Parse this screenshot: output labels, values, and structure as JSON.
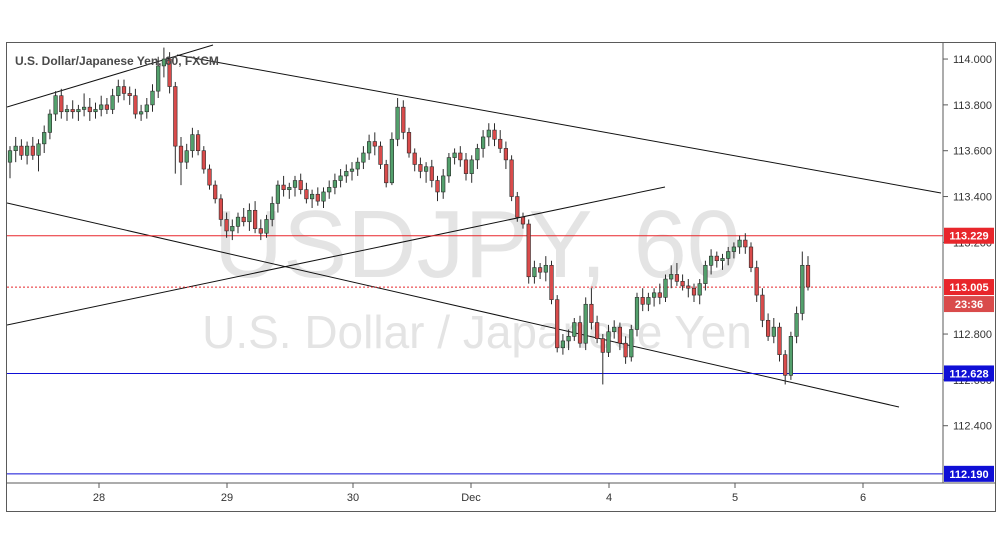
{
  "chart_data": {
    "type": "candlestick",
    "title": "U.S. Dollar/Japanese Yen, 60, FXCM",
    "watermark_symbol": "USDJPY, 60",
    "watermark_name": "U.S. Dollar / Japanese Yen",
    "x_tick_labels": [
      "28",
      "29",
      "30",
      "Dec",
      "4",
      "5",
      "6"
    ],
    "y_tick_labels": [
      "114.000",
      "113.800",
      "113.600",
      "113.400",
      "113.200",
      "112.800",
      "112.600",
      "112.400"
    ],
    "ylim": [
      112.15,
      114.07
    ],
    "price_lines": [
      {
        "label": "113.229",
        "value": 113.229,
        "color": "#e8262b",
        "style": "solid"
      },
      {
        "label": "113.005",
        "value": 113.005,
        "color": "#e8262b",
        "style": "dotted"
      },
      {
        "label": "112.628",
        "value": 112.628,
        "color": "#0f0fd6",
        "style": "solid"
      },
      {
        "label": "112.190",
        "value": 112.19,
        "color": "#0f0fd6",
        "style": "solid"
      }
    ],
    "countdown_label": "23:36",
    "colors": {
      "up": "#53a06c",
      "down": "#d94b4b",
      "outline": "#2b2b2b",
      "watermark": "#e4e4e4"
    },
    "candles": [
      [
        113.55,
        113.62,
        113.48,
        113.6
      ],
      [
        113.6,
        113.66,
        113.55,
        113.62
      ],
      [
        113.62,
        113.65,
        113.56,
        113.58
      ],
      [
        113.58,
        113.64,
        113.54,
        113.62
      ],
      [
        113.62,
        113.66,
        113.56,
        113.58
      ],
      [
        113.58,
        113.65,
        113.51,
        113.63
      ],
      [
        113.63,
        113.71,
        113.59,
        113.68
      ],
      [
        113.68,
        113.78,
        113.65,
        113.76
      ],
      [
        113.76,
        113.86,
        113.73,
        113.84
      ],
      [
        113.84,
        113.87,
        113.74,
        113.77
      ],
      [
        113.77,
        113.8,
        113.73,
        113.78
      ],
      [
        113.78,
        113.82,
        113.74,
        113.77
      ],
      [
        113.77,
        113.8,
        113.73,
        113.78
      ],
      [
        113.78,
        113.85,
        113.75,
        113.79
      ],
      [
        113.79,
        113.83,
        113.73,
        113.77
      ],
      [
        113.77,
        113.81,
        113.74,
        113.78
      ],
      [
        113.78,
        113.84,
        113.75,
        113.8
      ],
      [
        113.8,
        113.83,
        113.76,
        113.78
      ],
      [
        113.78,
        113.87,
        113.76,
        113.84
      ],
      [
        113.84,
        113.91,
        113.81,
        113.88
      ],
      [
        113.88,
        113.91,
        113.82,
        113.85
      ],
      [
        113.85,
        113.88,
        113.8,
        113.84
      ],
      [
        113.84,
        113.87,
        113.74,
        113.76
      ],
      [
        113.76,
        113.8,
        113.73,
        113.77
      ],
      [
        113.77,
        113.83,
        113.74,
        113.8
      ],
      [
        113.8,
        113.89,
        113.77,
        113.86
      ],
      [
        113.86,
        114.01,
        113.83,
        113.97
      ],
      [
        113.97,
        114.05,
        113.92,
        114.0
      ],
      [
        114.0,
        114.03,
        113.85,
        113.88
      ],
      [
        113.88,
        113.9,
        113.5,
        113.62
      ],
      [
        113.62,
        113.66,
        113.45,
        113.55
      ],
      [
        113.55,
        113.63,
        113.52,
        113.6
      ],
      [
        113.6,
        113.7,
        113.57,
        113.67
      ],
      [
        113.67,
        113.69,
        113.58,
        113.6
      ],
      [
        113.6,
        113.62,
        113.5,
        113.52
      ],
      [
        113.52,
        113.54,
        113.43,
        113.45
      ],
      [
        113.45,
        113.47,
        113.37,
        113.39
      ],
      [
        113.39,
        113.41,
        113.27,
        113.3
      ],
      [
        113.3,
        113.33,
        113.22,
        113.25
      ],
      [
        113.25,
        113.3,
        113.21,
        113.27
      ],
      [
        113.27,
        113.33,
        113.24,
        113.31
      ],
      [
        113.31,
        113.35,
        113.27,
        113.29
      ],
      [
        113.29,
        113.37,
        113.25,
        113.34
      ],
      [
        113.34,
        113.38,
        113.24,
        113.26
      ],
      [
        113.26,
        113.3,
        113.21,
        113.24
      ],
      [
        113.24,
        113.32,
        113.22,
        113.3
      ],
      [
        113.3,
        113.4,
        113.27,
        113.37
      ],
      [
        113.37,
        113.47,
        113.33,
        113.45
      ],
      [
        113.45,
        113.49,
        113.4,
        113.43
      ],
      [
        113.43,
        113.46,
        113.39,
        113.44
      ],
      [
        113.44,
        113.49,
        113.4,
        113.47
      ],
      [
        113.47,
        113.5,
        113.41,
        113.43
      ],
      [
        113.43,
        113.46,
        113.37,
        113.39
      ],
      [
        113.39,
        113.43,
        113.35,
        113.41
      ],
      [
        113.41,
        113.44,
        113.36,
        113.38
      ],
      [
        113.38,
        113.44,
        113.35,
        113.42
      ],
      [
        113.42,
        113.47,
        113.39,
        113.44
      ],
      [
        113.44,
        113.5,
        113.41,
        113.47
      ],
      [
        113.47,
        113.52,
        113.44,
        113.49
      ],
      [
        113.49,
        113.54,
        113.46,
        113.51
      ],
      [
        113.51,
        113.55,
        113.47,
        113.52
      ],
      [
        113.52,
        113.57,
        113.49,
        113.55
      ],
      [
        113.55,
        113.62,
        113.52,
        113.59
      ],
      [
        113.59,
        113.67,
        113.56,
        113.64
      ],
      [
        113.64,
        113.68,
        113.58,
        113.62
      ],
      [
        113.62,
        113.64,
        113.52,
        113.54
      ],
      [
        113.54,
        113.56,
        113.44,
        113.46
      ],
      [
        113.46,
        113.68,
        113.45,
        113.65
      ],
      [
        113.65,
        113.83,
        113.62,
        113.79
      ],
      [
        113.79,
        113.82,
        113.65,
        113.68
      ],
      [
        113.68,
        113.7,
        113.57,
        113.59
      ],
      [
        113.59,
        113.61,
        113.51,
        113.54
      ],
      [
        113.54,
        113.57,
        113.48,
        113.51
      ],
      [
        113.51,
        113.55,
        113.46,
        113.53
      ],
      [
        113.53,
        113.56,
        113.44,
        113.47
      ],
      [
        113.47,
        113.49,
        113.38,
        113.42
      ],
      [
        113.42,
        113.52,
        113.39,
        113.49
      ],
      [
        113.49,
        113.59,
        113.46,
        113.57
      ],
      [
        113.57,
        113.61,
        113.54,
        113.59
      ],
      [
        113.59,
        113.62,
        113.53,
        113.56
      ],
      [
        113.56,
        113.59,
        113.47,
        113.5
      ],
      [
        113.5,
        113.58,
        113.46,
        113.56
      ],
      [
        113.56,
        113.63,
        113.52,
        113.61
      ],
      [
        113.61,
        113.69,
        113.57,
        113.66
      ],
      [
        113.66,
        113.72,
        113.62,
        113.69
      ],
      [
        113.69,
        113.72,
        113.62,
        113.65
      ],
      [
        113.65,
        113.69,
        113.59,
        113.61
      ],
      [
        113.61,
        113.64,
        113.52,
        113.56
      ],
      [
        113.56,
        113.58,
        113.38,
        113.4
      ],
      [
        113.4,
        113.42,
        113.29,
        113.31
      ],
      [
        113.31,
        113.33,
        113.26,
        113.28
      ],
      [
        113.28,
        113.3,
        113.02,
        113.05
      ],
      [
        113.05,
        113.12,
        113.02,
        113.09
      ],
      [
        113.09,
        113.11,
        113.04,
        113.07
      ],
      [
        113.07,
        113.14,
        113.03,
        113.1
      ],
      [
        113.1,
        113.12,
        112.93,
        112.95
      ],
      [
        112.95,
        112.97,
        112.72,
        112.74
      ],
      [
        112.74,
        112.8,
        112.71,
        112.77
      ],
      [
        112.77,
        112.82,
        112.73,
        112.79
      ],
      [
        112.79,
        112.87,
        112.77,
        112.85
      ],
      [
        112.85,
        112.88,
        112.74,
        112.76
      ],
      [
        112.76,
        112.96,
        112.73,
        112.93
      ],
      [
        112.93,
        113.0,
        112.82,
        112.85
      ],
      [
        112.85,
        112.88,
        112.76,
        112.78
      ],
      [
        112.78,
        112.8,
        112.58,
        112.72
      ],
      [
        112.72,
        112.84,
        112.7,
        112.81
      ],
      [
        112.81,
        112.86,
        112.78,
        112.83
      ],
      [
        112.83,
        112.85,
        112.73,
        112.76
      ],
      [
        112.76,
        112.79,
        112.67,
        112.7
      ],
      [
        112.7,
        112.84,
        112.68,
        112.82
      ],
      [
        112.82,
        112.98,
        112.79,
        112.96
      ],
      [
        112.96,
        113.0,
        112.9,
        112.93
      ],
      [
        112.93,
        112.98,
        112.9,
        112.96
      ],
      [
        112.96,
        113.0,
        112.92,
        112.98
      ],
      [
        112.98,
        113.02,
        112.93,
        112.96
      ],
      [
        112.96,
        113.06,
        112.94,
        113.04
      ],
      [
        113.04,
        113.1,
        113.0,
        113.06
      ],
      [
        113.06,
        113.11,
        113.01,
        113.03
      ],
      [
        113.03,
        113.06,
        112.99,
        113.01
      ],
      [
        113.01,
        113.04,
        112.96,
        113.0
      ],
      [
        113.0,
        113.02,
        112.94,
        112.97
      ],
      [
        112.97,
        113.04,
        112.93,
        113.02
      ],
      [
        113.02,
        113.12,
        112.99,
        113.1
      ],
      [
        113.1,
        113.17,
        113.06,
        113.14
      ],
      [
        113.14,
        113.16,
        113.09,
        113.12
      ],
      [
        113.12,
        113.15,
        113.08,
        113.13
      ],
      [
        113.13,
        113.18,
        113.1,
        113.16
      ],
      [
        113.16,
        113.2,
        113.13,
        113.18
      ],
      [
        113.18,
        113.23,
        113.15,
        113.21
      ],
      [
        113.21,
        113.24,
        113.15,
        113.18
      ],
      [
        113.18,
        113.2,
        113.07,
        113.09
      ],
      [
        113.09,
        113.12,
        112.94,
        112.97
      ],
      [
        112.97,
        113.0,
        112.83,
        112.86
      ],
      [
        112.86,
        112.89,
        112.77,
        112.79
      ],
      [
        112.79,
        112.87,
        112.76,
        112.83
      ],
      [
        112.83,
        112.85,
        112.68,
        112.71
      ],
      [
        112.71,
        112.73,
        112.58,
        112.62
      ],
      [
        112.62,
        112.81,
        112.6,
        112.79
      ],
      [
        112.79,
        112.92,
        112.76,
        112.89
      ],
      [
        112.89,
        113.16,
        112.86,
        113.1
      ],
      [
        113.1,
        113.14,
        112.99,
        113.005
      ]
    ]
  }
}
